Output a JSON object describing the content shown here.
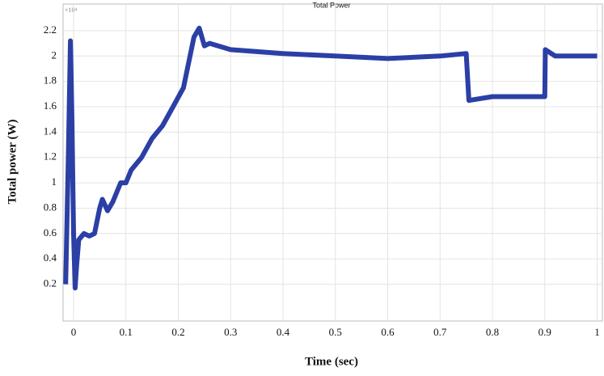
{
  "chart_data": {
    "type": "line",
    "title": "Total Power",
    "y_multiplier": "×10⁴",
    "xlabel": "Time (sec)",
    "ylabel": "Total power (W)",
    "x": [
      -0.015,
      -0.01,
      -0.006,
      -0.003,
      0,
      0.003,
      0.006,
      0.01,
      0.02,
      0.03,
      0.04,
      0.05,
      0.055,
      0.065,
      0.075,
      0.09,
      0.1,
      0.11,
      0.13,
      0.15,
      0.17,
      0.19,
      0.21,
      0.22,
      0.23,
      0.24,
      0.25,
      0.26,
      0.3,
      0.4,
      0.5,
      0.6,
      0.7,
      0.75,
      0.755,
      0.8,
      0.9,
      0.901,
      0.92,
      1.0
    ],
    "series": [
      {
        "name": "Total Power",
        "color": "#2b3fa5",
        "values": [
          0.2,
          1.2,
          2.12,
          1.5,
          0.6,
          0.17,
          0.35,
          0.55,
          0.6,
          0.58,
          0.6,
          0.8,
          0.87,
          0.78,
          0.85,
          1.0,
          1.0,
          1.1,
          1.2,
          1.35,
          1.45,
          1.6,
          1.75,
          1.95,
          2.15,
          2.22,
          2.08,
          2.1,
          2.05,
          2.02,
          2.0,
          1.98,
          2.0,
          2.02,
          1.65,
          1.68,
          1.68,
          2.05,
          2.0,
          2.0
        ]
      }
    ],
    "xlim": [
      -0.02,
      1.01
    ],
    "ylim": [
      -0.09,
      2.41
    ],
    "xticks": [
      0,
      0.1,
      0.2,
      0.3,
      0.4,
      0.5,
      0.6,
      0.7,
      0.8,
      0.9,
      1
    ],
    "yticks": [
      0.2,
      0.4,
      0.6,
      0.8,
      1,
      1.2,
      1.4,
      1.6,
      1.8,
      2,
      2.2
    ],
    "grid": true
  }
}
